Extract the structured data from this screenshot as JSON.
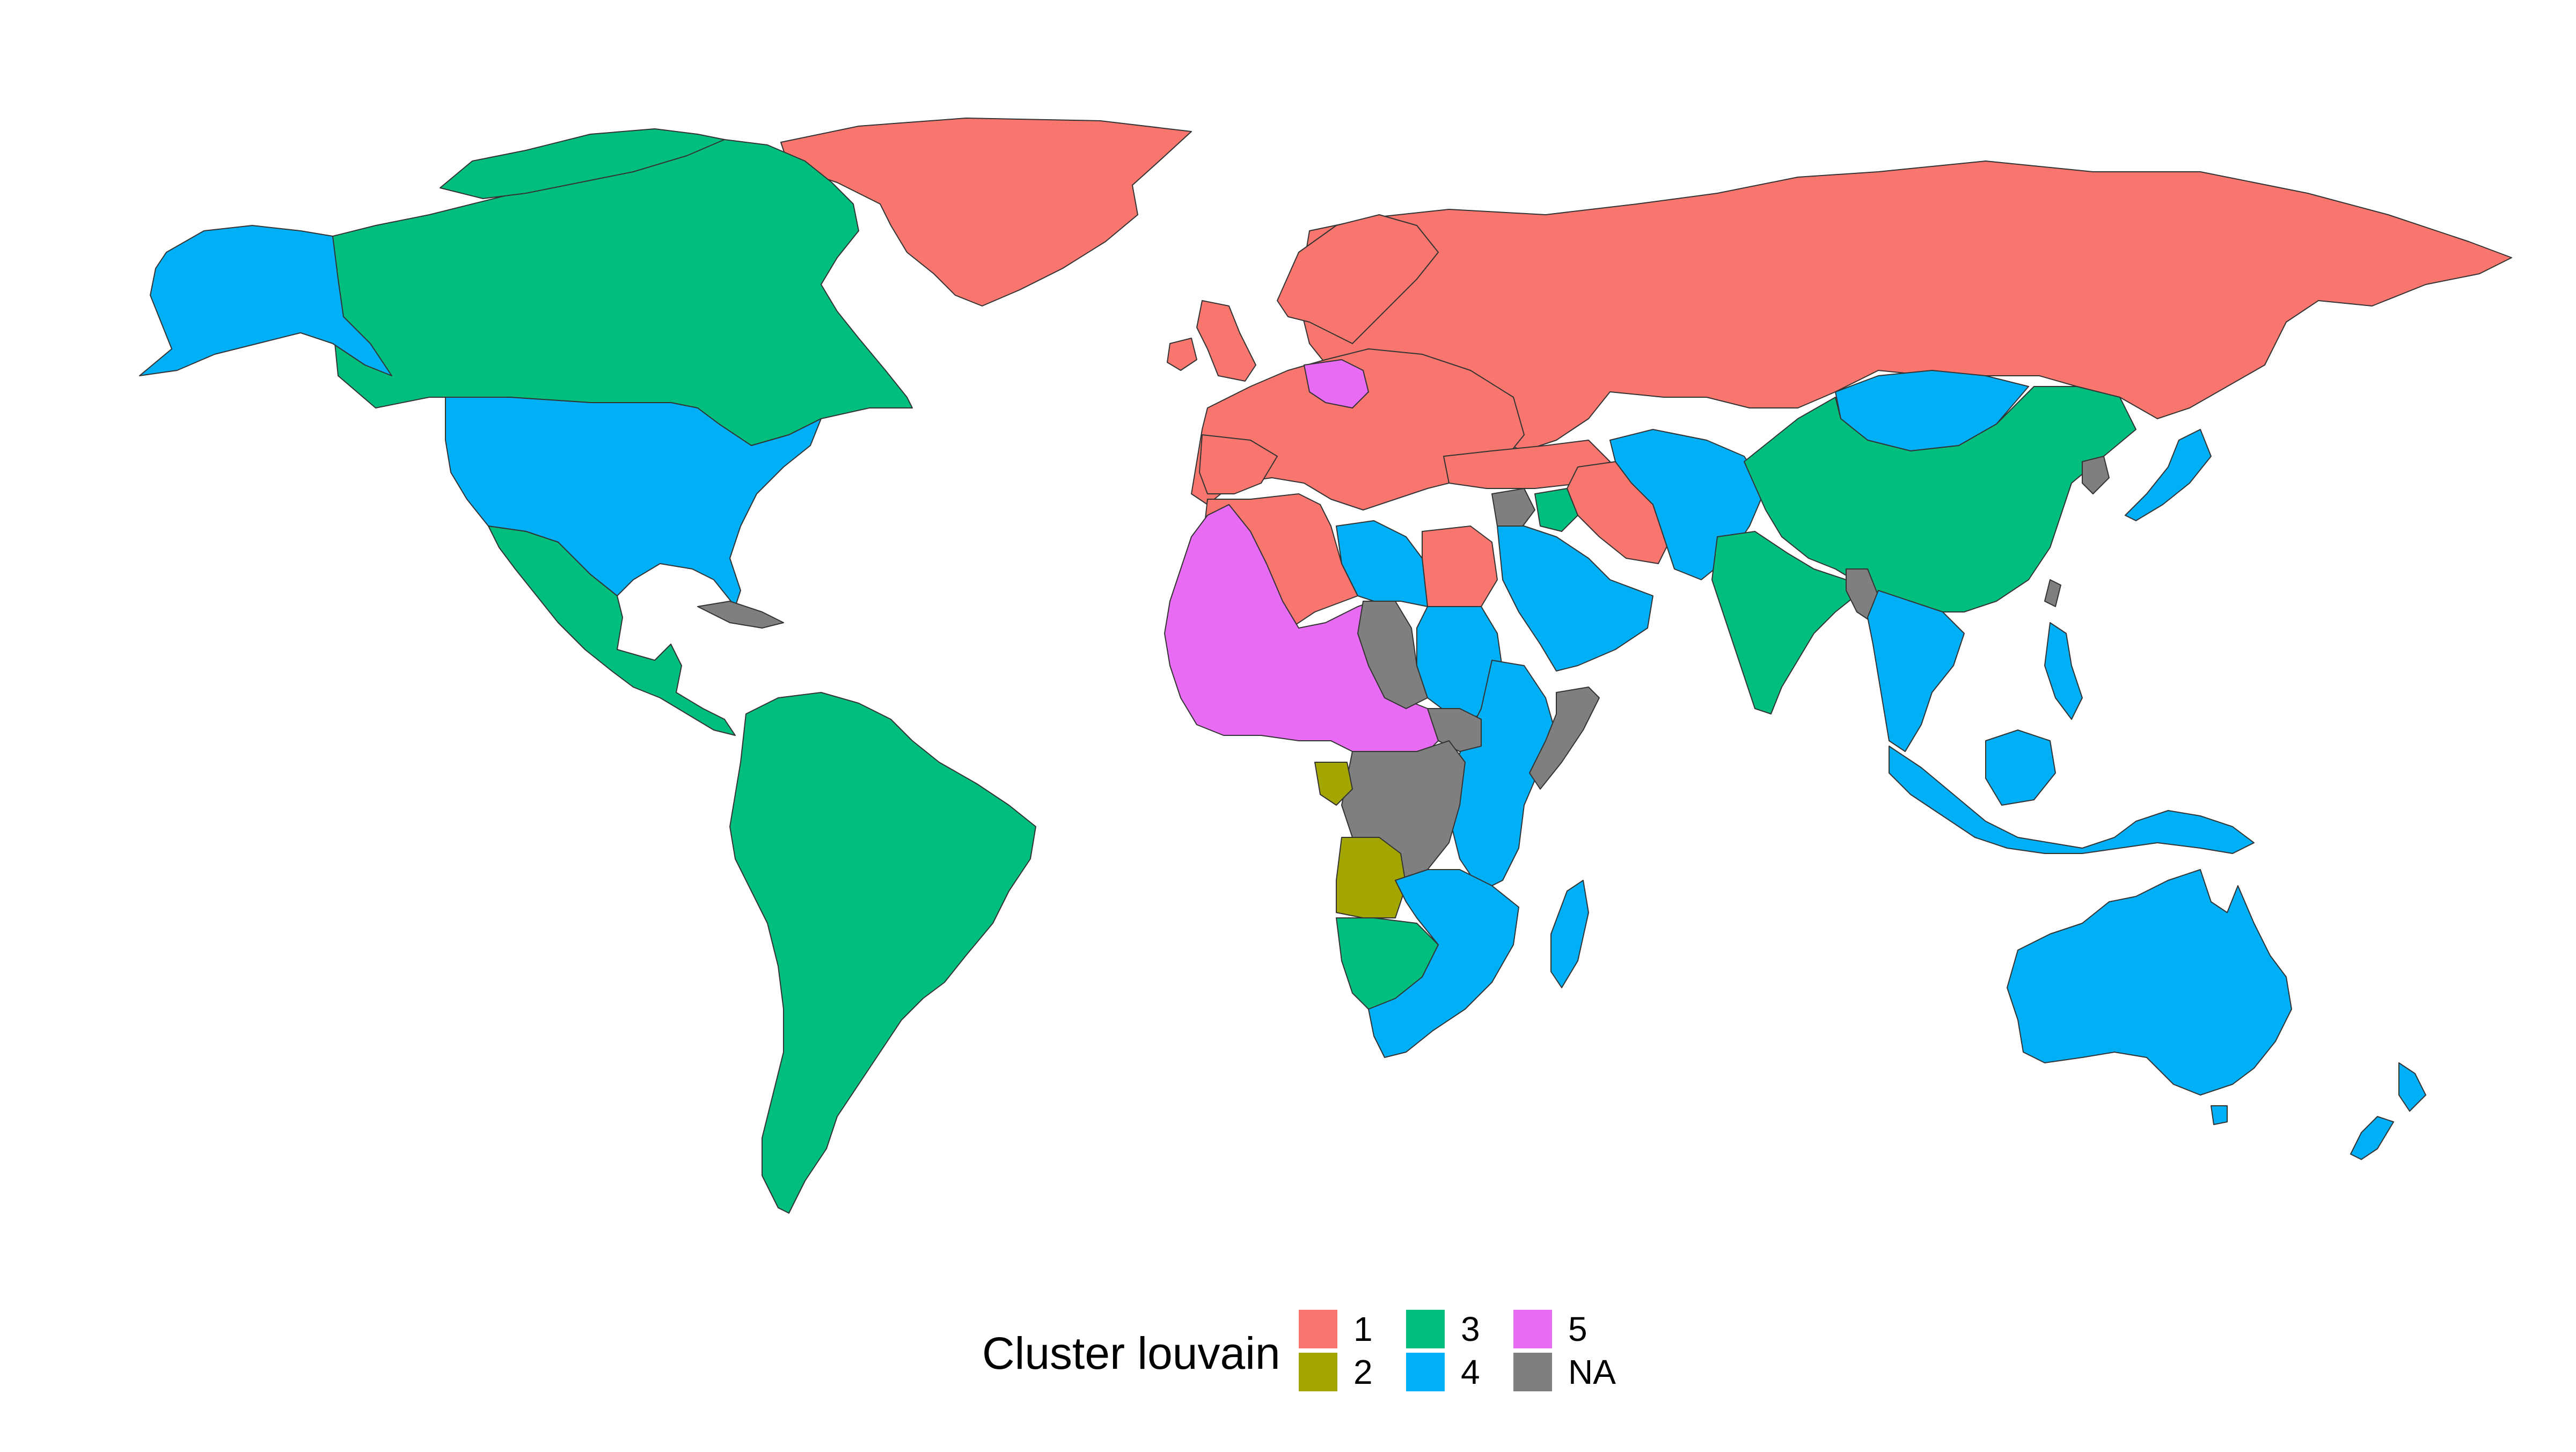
{
  "legend": {
    "title": "Cluster louvain",
    "entries": [
      {
        "label": "1",
        "color": "#F8766D"
      },
      {
        "label": "2",
        "color": "#A3A500"
      },
      {
        "label": "3",
        "color": "#00BF7D"
      },
      {
        "label": "4",
        "color": "#00B0F6"
      },
      {
        "label": "5",
        "color": "#E76BF3"
      },
      {
        "label": "NA",
        "color": "#7F7F7F"
      }
    ]
  },
  "map": {
    "regions": [
      {
        "name": "greenland",
        "cluster": "1"
      },
      {
        "name": "russia",
        "cluster": "1"
      },
      {
        "name": "europe",
        "cluster": "1"
      },
      {
        "name": "scandinavia",
        "cluster": "1"
      },
      {
        "name": "uk",
        "cluster": "1"
      },
      {
        "name": "turkey-caucasus",
        "cluster": "1"
      },
      {
        "name": "iran",
        "cluster": "1"
      },
      {
        "name": "algeria-morocco",
        "cluster": "1"
      },
      {
        "name": "egypt",
        "cluster": "1"
      },
      {
        "name": "gabon-congo",
        "cluster": "2"
      },
      {
        "name": "angola",
        "cluster": "2"
      },
      {
        "name": "canada",
        "cluster": "3"
      },
      {
        "name": "mexico-central-america",
        "cluster": "3"
      },
      {
        "name": "south-america",
        "cluster": "3"
      },
      {
        "name": "china",
        "cluster": "3"
      },
      {
        "name": "india",
        "cluster": "3"
      },
      {
        "name": "namibia-botswana",
        "cluster": "3"
      },
      {
        "name": "alaska",
        "cluster": "4"
      },
      {
        "name": "usa",
        "cluster": "4"
      },
      {
        "name": "libya",
        "cluster": "4"
      },
      {
        "name": "sudan-east-africa",
        "cluster": "4"
      },
      {
        "name": "arabia",
        "cluster": "4"
      },
      {
        "name": "central-asia",
        "cluster": "4"
      },
      {
        "name": "mongolia",
        "cluster": "4"
      },
      {
        "name": "southeast-asia",
        "cluster": "4"
      },
      {
        "name": "japan",
        "cluster": "4"
      },
      {
        "name": "indonesia",
        "cluster": "4"
      },
      {
        "name": "philippines",
        "cluster": "4"
      },
      {
        "name": "australia",
        "cluster": "4"
      },
      {
        "name": "new-zealand",
        "cluster": "4"
      },
      {
        "name": "southern-africa",
        "cluster": "4"
      },
      {
        "name": "madagascar",
        "cluster": "4"
      },
      {
        "name": "germany",
        "cluster": "5"
      },
      {
        "name": "west-africa",
        "cluster": "5"
      },
      {
        "name": "chad-niger",
        "cluster": "NA"
      },
      {
        "name": "drc",
        "cluster": "NA"
      },
      {
        "name": "somalia",
        "cluster": "NA"
      },
      {
        "name": "cuba-caribbean",
        "cluster": "NA"
      },
      {
        "name": "syria-iraq",
        "cluster": "NA"
      },
      {
        "name": "north-korea",
        "cluster": "NA"
      },
      {
        "name": "south-sudan-ethiopia",
        "cluster": "NA"
      },
      {
        "name": "myanmar",
        "cluster": "NA"
      },
      {
        "name": "taiwan",
        "cluster": "NA"
      }
    ]
  }
}
